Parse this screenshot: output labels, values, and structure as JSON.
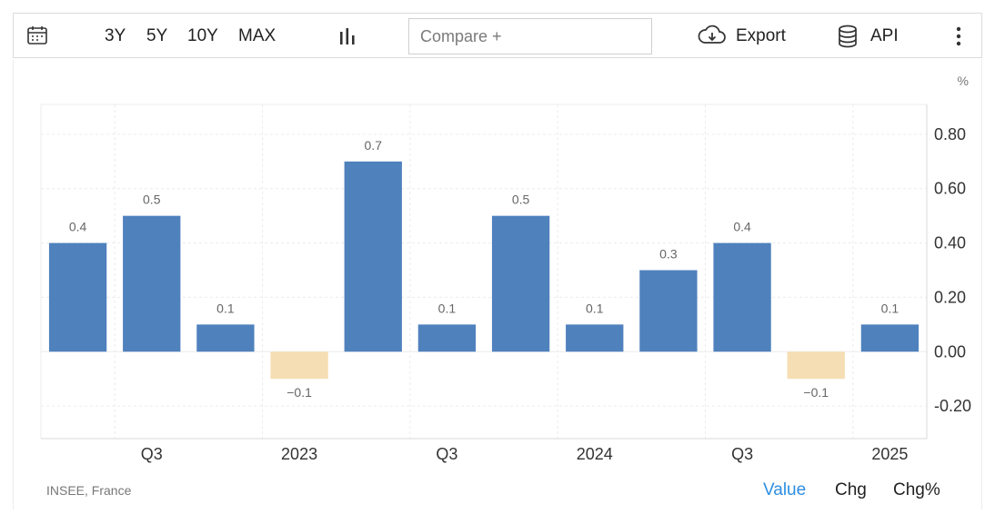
{
  "toolbar": {
    "icons": {
      "calendar": "calendar-icon",
      "chart_type": "bar-chart-icon",
      "export": "cloud-download-icon",
      "api": "database-icon",
      "more": "more-vertical-icon"
    },
    "ranges": [
      "3Y",
      "5Y",
      "10Y",
      "MAX"
    ],
    "compare_placeholder": "Compare +",
    "export_label": "Export",
    "api_label": "API"
  },
  "footer": {
    "source": "INSEE, France",
    "modes": [
      "Value",
      "Chg",
      "Chg%"
    ],
    "active_mode": "Value"
  },
  "chart_data": {
    "type": "bar",
    "unit": "%",
    "values": [
      0.4,
      0.5,
      0.1,
      -0.1,
      0.7,
      0.1,
      0.5,
      0.1,
      0.3,
      0.4,
      -0.1,
      0.1
    ],
    "data_labels": [
      "0.4",
      "0.5",
      "0.1",
      "−0.1",
      "0.7",
      "0.1",
      "0.5",
      "0.1",
      "0.3",
      "0.4",
      "−0.1",
      "0.1"
    ],
    "x_tick_labels": [
      {
        "label": "Q3",
        "bar": 1
      },
      {
        "label": "2023",
        "bar": 3
      },
      {
        "label": "Q3",
        "bar": 5
      },
      {
        "label": "2024",
        "bar": 7
      },
      {
        "label": "Q3",
        "bar": 9
      },
      {
        "label": "2025",
        "bar": 11
      }
    ],
    "y_ticks": [
      "0.80",
      "0.60",
      "0.40",
      "0.20",
      "0.00",
      "-0.20"
    ],
    "y_tick_values": [
      0.8,
      0.6,
      0.4,
      0.2,
      0.0,
      -0.2
    ],
    "ylim": [
      -0.32,
      0.91
    ],
    "grid": true,
    "colors": {
      "positive": "#4f81bd",
      "negative": "#f5deb3",
      "grid": "#ececec",
      "axis_text": "#333333",
      "label_text": "#666666"
    }
  }
}
